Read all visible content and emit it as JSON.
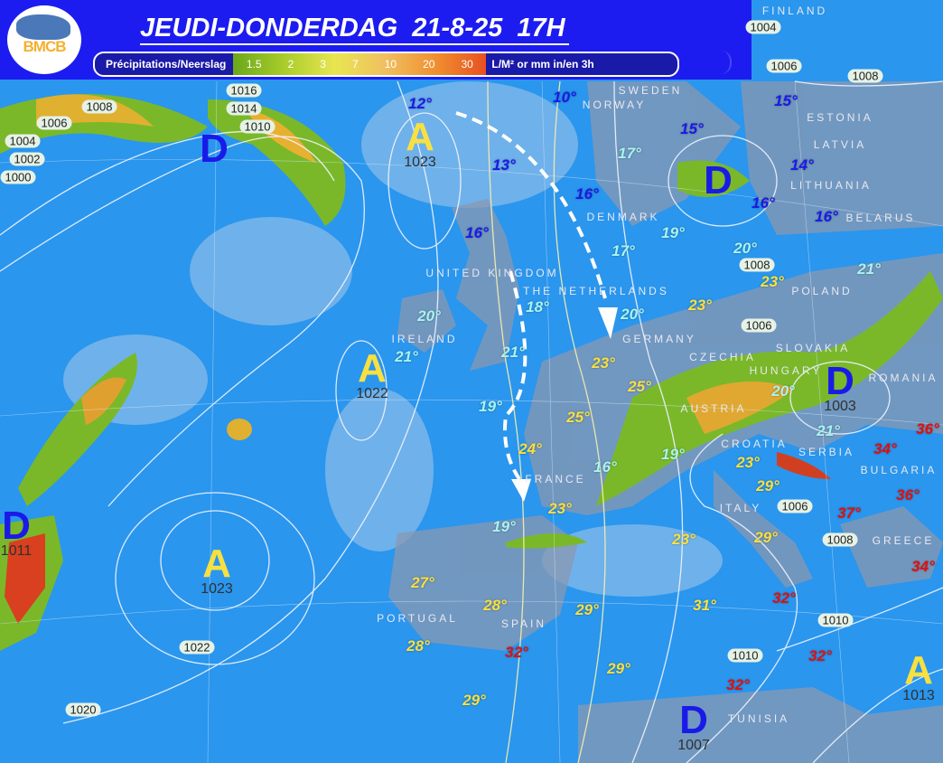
{
  "header": {
    "title": "JEUDI-DONDERDAG  21-8-25  17H",
    "logo_text": "BMCB",
    "legend": {
      "label": "Précipitations/Neerslag",
      "scale": [
        "1.5",
        "2",
        "3",
        "7",
        "10",
        "20",
        "30"
      ],
      "unit": "L/M² or mm in/en 3h"
    }
  },
  "colors": {
    "header_bg": "#1c1cf0",
    "sea": "#2a96ee",
    "cool": "#1a1ae8",
    "mild": "#a8f4f0",
    "warm": "#f8e040",
    "hot": "#e01010",
    "low": "#1a1ae8",
    "high": "#f8e040"
  },
  "temperatures": {
    "cool": [
      "12°",
      "10°",
      "13°",
      "16°",
      "16°",
      "15°",
      "15°",
      "14°",
      "16°",
      "16°"
    ],
    "mild": [
      "17°",
      "17°",
      "19°",
      "20°",
      "21°",
      "20°",
      "18°",
      "20°",
      "21°",
      "21°",
      "19°",
      "20°",
      "21°",
      "16°",
      "19°",
      "19°"
    ],
    "warm": [
      "23°",
      "23°",
      "23°",
      "25°",
      "25°",
      "24°",
      "23°",
      "23°",
      "29°",
      "23°",
      "29°",
      "27°",
      "28°",
      "29°",
      "31°",
      "28°",
      "29°",
      "29°"
    ],
    "hot": [
      "36°",
      "34°",
      "36°",
      "37°",
      "34°",
      "32°",
      "32°",
      "32°",
      "32°"
    ]
  },
  "pressure_centers": [
    {
      "type": "D",
      "value": ""
    },
    {
      "type": "D",
      "value": ""
    },
    {
      "type": "D",
      "value": "1003"
    },
    {
      "type": "D",
      "value": "1011"
    },
    {
      "type": "D",
      "value": "1007"
    },
    {
      "type": "A",
      "value": "1023"
    },
    {
      "type": "A",
      "value": "1022"
    },
    {
      "type": "A",
      "value": "1023"
    },
    {
      "type": "A",
      "value": "1013"
    }
  ],
  "isobar_labels": [
    "1016",
    "1014",
    "1010",
    "1008",
    "1006",
    "1004",
    "1002",
    "1000",
    "1006",
    "1008",
    "1004",
    "1008",
    "1006",
    "1006",
    "1008",
    "1010",
    "1010",
    "1022",
    "1020"
  ],
  "countries": [
    "SWEDEN",
    "NORWAY",
    "ESTONIA",
    "LATVIA",
    "LITHUANIA",
    "BELARUS",
    "DENMARK",
    "UNITED KINGDOM",
    "IRELAND",
    "THE NETHERLANDS",
    "GERMANY",
    "POLAND",
    "CZECHIA",
    "SLOVAKIA",
    "ROMANIA",
    "HUNGARY",
    "AUSTRIA",
    "SERBIA",
    "BULGARIA",
    "CROATIA",
    "FRANCE",
    "ITALY",
    "GREECE",
    "SPAIN",
    "PORTUGAL",
    "TUNISIA",
    "FINLAND"
  ]
}
